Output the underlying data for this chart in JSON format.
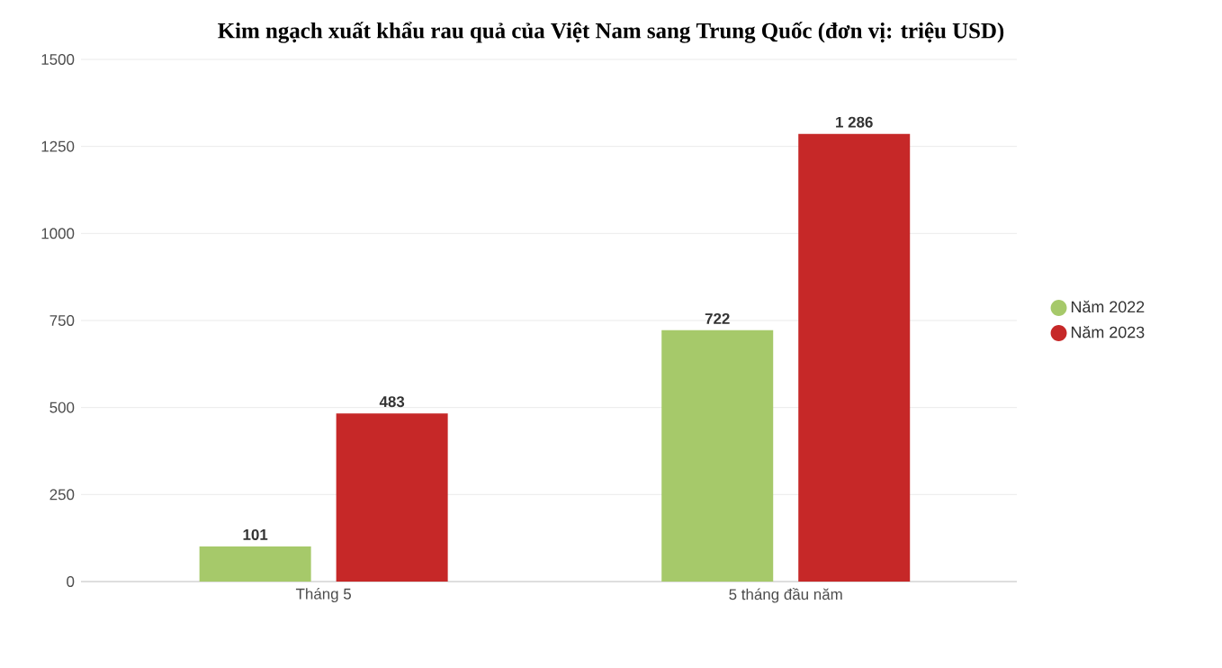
{
  "chart_data": {
    "type": "bar",
    "title": "Kim ngạch xuất khẩu rau quả của Việt Nam sang Trung Quốc (đơn vị: triệu USD)",
    "categories": [
      "Tháng 5",
      "5 tháng đầu năm"
    ],
    "series": [
      {
        "name": "Năm 2022",
        "color": "#a6c96a",
        "values": [
          101,
          722
        ],
        "value_labels": [
          "101",
          "722"
        ]
      },
      {
        "name": "Năm 2023",
        "color": "#c62828",
        "values": [
          483,
          1286
        ],
        "value_labels": [
          "483",
          "1 286"
        ]
      }
    ],
    "ylim": [
      0,
      1500
    ],
    "yticks": [
      0,
      250,
      500,
      750,
      1000,
      1250,
      1500
    ],
    "grid": "y",
    "legend": "right"
  }
}
